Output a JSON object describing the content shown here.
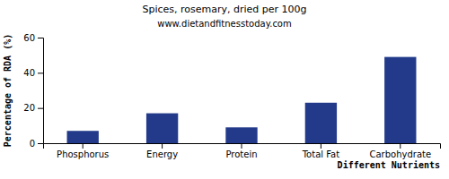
{
  "chart_data": {
    "type": "bar",
    "title": "Spices, rosemary, dried per 100g",
    "subtitle": "www.dietandfitnesstoday.com",
    "x_label": "Different Nutrients",
    "y_label": "Percentage of RDA (%)",
    "categories": [
      "Phosphorus",
      "Energy",
      "Protein",
      "Total Fat",
      "Carbohydrate"
    ],
    "values": [
      7,
      17,
      9,
      23,
      49
    ],
    "color": "#233a8b",
    "ylim": [
      0,
      60
    ],
    "yticks": [
      0,
      20,
      40,
      60
    ],
    "grid": false
  }
}
